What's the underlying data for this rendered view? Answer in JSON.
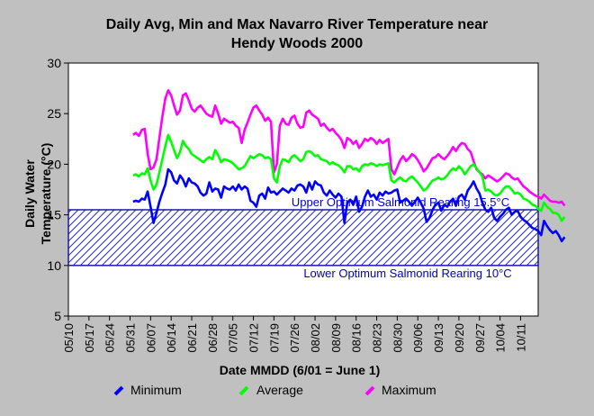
{
  "chart_data": {
    "type": "line",
    "title_line1": "Daily Avg, Min and Max Navarro River Temperature near",
    "title_line2": "Hendy Woods 2000",
    "xlabel": "Date MMDD (6/01 = June 1)",
    "ylabel_line1": "Daily Water",
    "ylabel_line2": "Temperature (°C)",
    "ylim": [
      5,
      30
    ],
    "yticks": [
      5,
      10,
      15,
      20,
      25,
      30
    ],
    "x_tick_labels": [
      "05/10",
      "05/17",
      "05/24",
      "05/31",
      "06/07",
      "06/14",
      "06/21",
      "06/28",
      "07/05",
      "07/12",
      "07/19",
      "07/26",
      "08/02",
      "08/09",
      "08/16",
      "08/23",
      "08/30",
      "09/06",
      "09/13",
      "09/20",
      "09/27",
      "10/04",
      "10/11"
    ],
    "x_range_days": [
      0,
      160
    ],
    "band": {
      "lower": 10,
      "upper": 15.5,
      "lower_label": "Lower Optimum Salmonid Rearing 10°C",
      "upper_label": "Upper Optimum Salmonid Rearing 15.5°C"
    },
    "grid": false,
    "legend_position": "bottom",
    "start_day": 22,
    "series": [
      {
        "name": "Minimum",
        "color": "#0000ff",
        "values": [
          16.3,
          16.4,
          16.3,
          16.6,
          16.5,
          17.3,
          15.8,
          14.2,
          15.2,
          16.3,
          17.2,
          18.0,
          19.5,
          19.2,
          18.4,
          18.1,
          18.9,
          18.5,
          17.8,
          18.6,
          18.2,
          18.1,
          17.8,
          17.2,
          16.9,
          17.1,
          18.2,
          17.3,
          17.6,
          17.5,
          16.7,
          17.8,
          17.6,
          17.5,
          17.8,
          17.4,
          18.0,
          17.5,
          17.8,
          17.6,
          16.4,
          16.2,
          15.8,
          16.9,
          17.1,
          16.6,
          17.7,
          17.2,
          17.3,
          17.0,
          17.3,
          17.6,
          17.4,
          17.2,
          17.6,
          17.4,
          17.9,
          18.0,
          17.8,
          17.2,
          18.2,
          17.5,
          18.3,
          18.0,
          17.9,
          17.2,
          16.9,
          17.4,
          17.0,
          16.7,
          17.1,
          16.8,
          14.2,
          16.2,
          16.5,
          16.0,
          16.8,
          15.3,
          15.8,
          16.8,
          17.4,
          16.8,
          17.0,
          16.5,
          17.2,
          16.9,
          17.3,
          17.1,
          17.2,
          17.4,
          17.5,
          16.2,
          16.4,
          16.6,
          16.3,
          15.9,
          16.3,
          16.7,
          16.2,
          15.6,
          14.3,
          14.7,
          15.5,
          16.0,
          16.2,
          15.4,
          16.0,
          15.8,
          16.3,
          16.6,
          15.9,
          16.8,
          17.0,
          16.5,
          17.4,
          17.8,
          18.3,
          17.6,
          17.1,
          16.2,
          15.5,
          15.3,
          15.7,
          14.7,
          14.4,
          14.8,
          15.1,
          15.5,
          15.7,
          15.0,
          15.3,
          15.4,
          14.8,
          14.5,
          14.3,
          14.0,
          13.7,
          13.6,
          13.4,
          13.0,
          14.4,
          13.9,
          13.5,
          13.2,
          13.4,
          13.0,
          12.4,
          12.8
        ]
      },
      {
        "name": "Average",
        "color": "#00ff00",
        "values": [
          18.9,
          19.0,
          18.8,
          19.1,
          19.0,
          19.6,
          18.4,
          17.5,
          18.0,
          19.2,
          20.5,
          21.8,
          22.9,
          22.2,
          21.4,
          20.6,
          21.2,
          22.3,
          21.8,
          21.5,
          21.0,
          20.8,
          20.6,
          20.4,
          20.2,
          20.5,
          20.7,
          20.5,
          21.4,
          20.9,
          20.2,
          20.5,
          20.4,
          20.3,
          20.1,
          19.8,
          19.5,
          19.6,
          19.8,
          20.3,
          20.8,
          20.6,
          20.8,
          21.0,
          20.9,
          20.6,
          20.7,
          20.5,
          18.6,
          18.2,
          19.8,
          20.5,
          20.4,
          20.2,
          20.7,
          20.9,
          20.6,
          20.3,
          20.5,
          21.2,
          21.3,
          21.1,
          20.8,
          20.9,
          20.5,
          20.4,
          20.3,
          20.0,
          20.2,
          20.0,
          19.9,
          19.6,
          19.2,
          19.8,
          19.8,
          19.5,
          19.6,
          19.3,
          19.8,
          20.0,
          19.9,
          20.1,
          20.0,
          19.8,
          20.0,
          19.9,
          20.0,
          20.1,
          18.4,
          18.2,
          18.5,
          18.7,
          18.4,
          18.3,
          18.6,
          18.8,
          18.5,
          18.2,
          17.8,
          17.4,
          17.6,
          18.0,
          18.4,
          18.5,
          18.7,
          18.5,
          18.6,
          18.9,
          19.3,
          19.6,
          19.4,
          19.8,
          19.5,
          19.0,
          19.4,
          19.8,
          20.0,
          19.6,
          19.2,
          18.8,
          17.4,
          17.5,
          17.3,
          17.0,
          16.9,
          17.1,
          17.5,
          17.8,
          17.8,
          17.5,
          17.1,
          17.2,
          17.0,
          16.6,
          16.5,
          16.3,
          16.0,
          15.9,
          15.6,
          15.4,
          16.2,
          15.8,
          15.6,
          15.2,
          15.2,
          15.0,
          14.4,
          14.8
        ]
      },
      {
        "name": "Maximum",
        "color": "#ff00ff",
        "values": [
          22.9,
          23.1,
          22.8,
          23.4,
          23.5,
          21.0,
          19.5,
          19.7,
          20.5,
          22.6,
          24.7,
          26.5,
          27.3,
          26.8,
          25.8,
          24.9,
          25.3,
          26.8,
          27.0,
          26.3,
          25.5,
          25.2,
          25.6,
          25.8,
          25.4,
          25.0,
          24.8,
          24.7,
          25.8,
          25.0,
          24.0,
          24.5,
          24.3,
          24.1,
          24.2,
          23.8,
          23.6,
          22.1,
          23.4,
          24.1,
          24.9,
          25.6,
          25.8,
          25.3,
          24.9,
          24.3,
          24.6,
          24.2,
          19.2,
          20.0,
          23.8,
          24.5,
          24.0,
          23.9,
          24.6,
          24.8,
          24.0,
          23.6,
          23.7,
          25.1,
          25.3,
          24.9,
          24.7,
          24.5,
          23.8,
          24.0,
          23.6,
          23.3,
          23.5,
          23.1,
          22.8,
          22.4,
          21.6,
          22.6,
          22.4,
          22.0,
          22.3,
          21.6,
          22.0,
          22.5,
          22.3,
          22.6,
          22.4,
          22.0,
          22.4,
          22.1,
          22.3,
          22.5,
          19.5,
          19.0,
          19.7,
          20.4,
          20.8,
          20.3,
          20.6,
          21.0,
          20.8,
          20.4,
          19.9,
          19.3,
          19.6,
          20.1,
          20.6,
          20.7,
          21.0,
          20.7,
          20.5,
          20.8,
          21.2,
          21.7,
          21.3,
          21.8,
          22.1,
          22.0,
          21.5,
          21.2,
          20.3,
          19.5,
          19.2,
          19.0,
          18.6,
          18.9,
          18.7,
          18.5,
          18.3,
          18.5,
          18.8,
          19.1,
          19.0,
          18.7,
          18.5,
          18.6,
          18.2,
          17.8,
          17.6,
          17.3,
          17.1,
          16.9,
          16.8,
          16.6,
          17.0,
          16.7,
          16.4,
          16.3,
          16.3,
          16.2,
          16.3,
          15.9
        ]
      }
    ]
  },
  "legend": [
    {
      "label": "Minimum",
      "color": "#0000ff"
    },
    {
      "label": "Average",
      "color": "#00ff00"
    },
    {
      "label": "Maximum",
      "color": "#ff00ff"
    }
  ]
}
